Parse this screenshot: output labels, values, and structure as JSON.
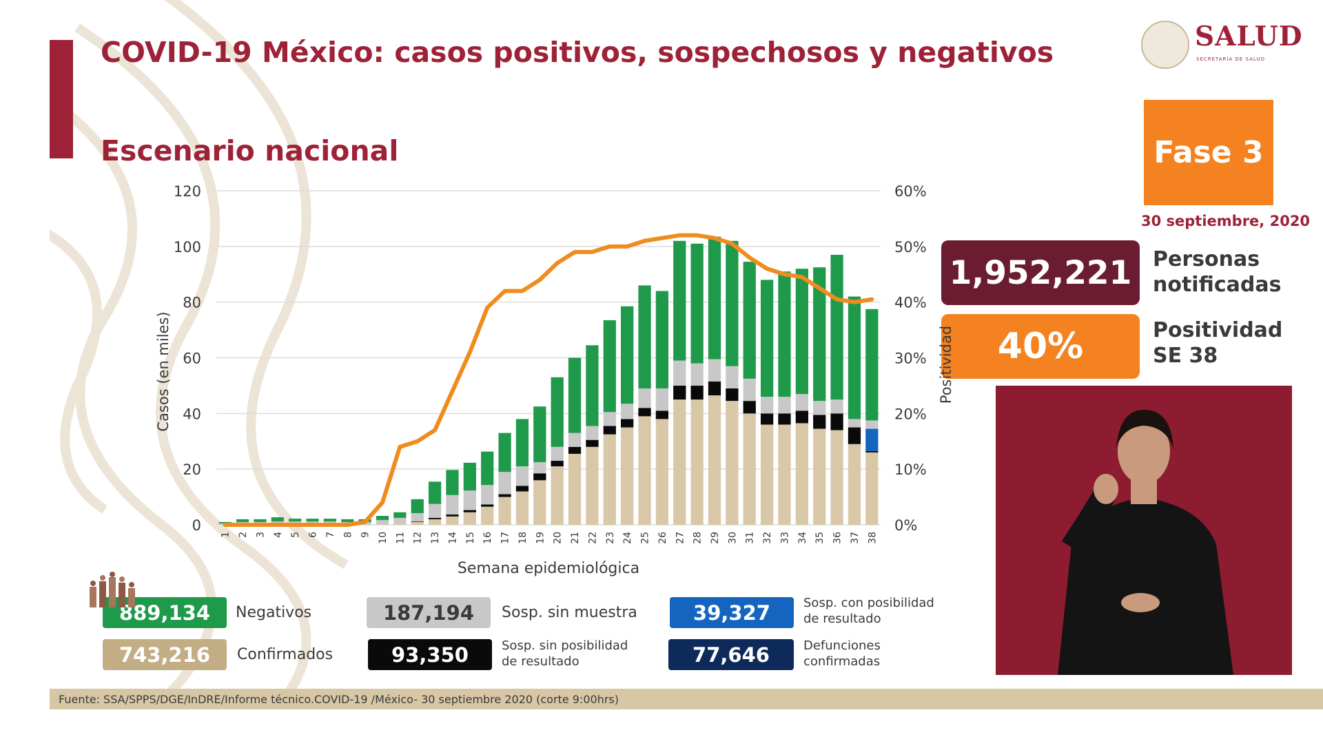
{
  "header": {
    "title": "COVID-19 México: casos positivos, sospechosos y negativos",
    "subtitle": "Escenario nacional"
  },
  "logo": {
    "main": "SALUD",
    "sub": "SECRETARÍA DE SALUD"
  },
  "phase": {
    "label": "Fase 3",
    "date": "30 septiembre, 2020"
  },
  "stats": {
    "notified": {
      "value": "1,952,221",
      "label_line1": "Personas",
      "label_line2": "notificadas"
    },
    "positivity": {
      "value": "40%",
      "label_line1": "Positividad",
      "label_line2": "SE 38"
    }
  },
  "colors": {
    "accent": "#9e2237",
    "orange": "#f58220",
    "notified_box": "#6a1d31",
    "negativos": "#1f9a4b",
    "sosp_sin_muestra": "#c8c8c8",
    "sosp_sin_posibilidad": "#0a0a0a",
    "sosp_con_posibilidad": "#1565c0",
    "confirmados": "#d8c8a8",
    "defunciones": "#0d2a5a",
    "positivity_line": "#f08c1e"
  },
  "legend": {
    "negativos": {
      "value": "889,134",
      "label": "Negativos"
    },
    "confirmados": {
      "value": "743,216",
      "label": "Confirmados"
    },
    "sosp_sin_muestra": {
      "value": "187,194",
      "label": "Sosp. sin muestra"
    },
    "sosp_sin_posibilidad": {
      "value": "93,350",
      "label_line1": "Sosp. sin posibilidad",
      "label_line2": "de resultado"
    },
    "sosp_con_posibilidad": {
      "value": "39,327",
      "label_line1": "Sosp. con posibilidad",
      "label_line2": "de resultado"
    },
    "defunciones": {
      "value": "77,646",
      "label_line1": "Defunciones",
      "label_line2": "confirmadas"
    }
  },
  "source": "Fuente: SSA/SPPS/DGE/InDRE/Informe técnico.COVID-19 /México- 30 septiembre 2020 (corte 9:00hrs)",
  "chart_data": {
    "type": "bar",
    "stacked": true,
    "xlabel": "Semana epidemiológica",
    "ylabel": "Casos (en miles)",
    "y2label": "Positividad",
    "ylim": [
      0,
      120
    ],
    "yticks": [
      "0",
      "20",
      "40",
      "60",
      "80",
      "100",
      "120"
    ],
    "y2lim": [
      0,
      60
    ],
    "y2ticks": [
      "0%",
      "10%",
      "20%",
      "30%",
      "40%",
      "50%",
      "60%"
    ],
    "grid": true,
    "categories": [
      "1",
      "2",
      "3",
      "4",
      "5",
      "6",
      "7",
      "8",
      "9",
      "10",
      "11",
      "12",
      "13",
      "14",
      "15",
      "16",
      "17",
      "18",
      "19",
      "20",
      "21",
      "22",
      "23",
      "24",
      "25",
      "26",
      "27",
      "28",
      "29",
      "30",
      "31",
      "32",
      "33",
      "34",
      "35",
      "36",
      "37",
      "38"
    ],
    "series": [
      {
        "name": "Confirmados",
        "color": "#d8c8a8",
        "values": [
          0,
          0,
          0,
          0,
          0,
          0,
          0,
          0,
          0,
          0.2,
          0.5,
          1,
          2,
          3,
          4.5,
          6.5,
          10,
          12,
          16,
          21,
          25.5,
          28,
          32.5,
          35,
          39,
          38,
          45,
          45,
          46.5,
          44.5,
          40,
          36,
          36,
          36.5,
          34.5,
          34,
          29,
          26
        ]
      },
      {
        "name": "Sosp. sin posibilidad de resultado",
        "color": "#0a0a0a",
        "values": [
          0,
          0,
          0,
          0,
          0,
          0,
          0,
          0,
          0,
          0,
          0,
          0.2,
          0.5,
          0.7,
          0.8,
          0.8,
          1,
          2,
          2.5,
          2,
          2.5,
          2.5,
          3,
          3,
          3,
          3,
          5,
          5,
          5,
          4.5,
          4.5,
          4,
          4,
          4.5,
          5,
          6,
          6,
          0.5
        ]
      },
      {
        "name": "Sosp. con posibilidad de resultado",
        "color": "#1565c0",
        "values": [
          0,
          0,
          0,
          0,
          0,
          0,
          0,
          0,
          0,
          0,
          0,
          0,
          0,
          0,
          0,
          0,
          0,
          0,
          0,
          0,
          0,
          0,
          0,
          0,
          0,
          0,
          0,
          0,
          0,
          0,
          0,
          0,
          0,
          0,
          0,
          0,
          0,
          8
        ]
      },
      {
        "name": "Sosp. sin muestra",
        "color": "#c8c8c8",
        "values": [
          0.5,
          1,
          1,
          1.2,
          1.2,
          1.2,
          1.2,
          1,
          1,
          1.5,
          2,
          3,
          5,
          7,
          7,
          7,
          8,
          7,
          4,
          5,
          5,
          5,
          5,
          5.5,
          7,
          8,
          9,
          8,
          8,
          8,
          8,
          6,
          6,
          6,
          5,
          5,
          3,
          3
        ]
      },
      {
        "name": "Negativos",
        "color": "#1f9a4b",
        "values": [
          0.5,
          1,
          1,
          1.5,
          1,
          1,
          1,
          1,
          1,
          1.5,
          2,
          5,
          8,
          9,
          10,
          12,
          14,
          17,
          20,
          25,
          27,
          29,
          33,
          35,
          37,
          35,
          43,
          43,
          44,
          45,
          42,
          42,
          45,
          45,
          48,
          52,
          44,
          40
        ]
      }
    ],
    "line": {
      "name": "Positividad",
      "color": "#f08c1e",
      "axis": "right",
      "values": [
        0,
        0,
        0,
        0,
        0,
        0,
        0,
        0,
        0.5,
        4,
        14,
        15,
        17,
        24,
        31,
        39,
        42,
        42,
        44,
        47,
        49,
        49,
        50,
        50,
        51,
        51.5,
        52,
        52,
        51.5,
        50.5,
        48,
        46,
        45,
        44.5,
        42.5,
        40.5,
        40,
        40.5
      ]
    }
  }
}
